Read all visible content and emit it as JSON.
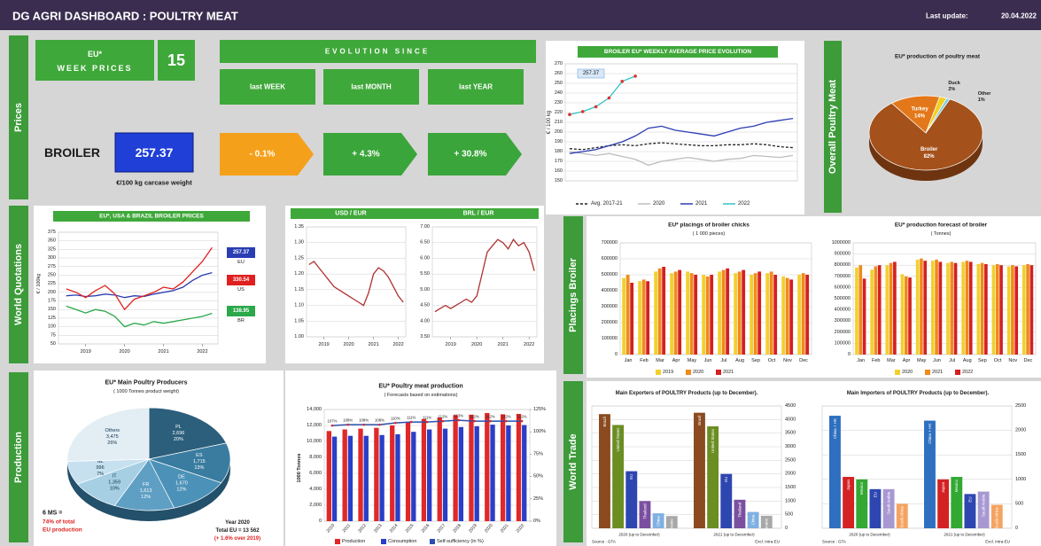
{
  "header": {
    "title": "DG AGRI DASHBOARD  :  POULTRY MEAT",
    "last_update_label": "Last update:",
    "last_update": "20.04.2022"
  },
  "tabs": {
    "prices": "Prices",
    "world_quotations": "World Quotations",
    "production": "Production",
    "overall": "Overall Poultry Meat",
    "placings": "Placings Broiler",
    "world_trade": "World Trade"
  },
  "prices": {
    "week_label_1": "EU*",
    "week_label_2": "WEEK  PRICES",
    "week": 15,
    "evolution_title": "EVOLUTION SINCE",
    "periods": [
      "last WEEK",
      "last MONTH",
      "last YEAR"
    ],
    "product": "BROILER",
    "price": 257.37,
    "unit": "€/100 kg carcase weight",
    "changes": [
      "- 0.1%",
      "+ 4.3%",
      "+ 30.8%"
    ]
  },
  "broiler_chart": {
    "type": "line",
    "title": "BROILER EU* WEEKLY AVERAGE PRICE EVOLUTION",
    "y_label": "€ / 100 kg",
    "x": [
      1,
      4,
      7,
      10,
      13,
      16,
      19,
      22,
      25,
      28,
      31,
      34,
      37,
      40,
      43,
      46,
      49,
      52
    ],
    "xlim": [
      0,
      53
    ],
    "ylim": [
      150,
      270
    ],
    "yticks": [
      150,
      160,
      170,
      180,
      190,
      200,
      210,
      220,
      230,
      240,
      250,
      260,
      270
    ],
    "grid": true,
    "series": [
      {
        "name": "Avg. 2017-21",
        "color": "#222222",
        "dash": true,
        "values": [
          183,
          182,
          184,
          186,
          187,
          186,
          188,
          189,
          188,
          187,
          186,
          186,
          187,
          187,
          188,
          187,
          185,
          184
        ]
      },
      {
        "name": "2020",
        "color": "#bdbdbd",
        "values": [
          180,
          178,
          176,
          178,
          175,
          172,
          166,
          170,
          172,
          174,
          172,
          170,
          172,
          173,
          176,
          175,
          174,
          176
        ]
      },
      {
        "name": "2021",
        "color": "#2a3db3",
        "values": [
          178,
          180,
          182,
          186,
          190,
          196,
          204,
          206,
          202,
          200,
          198,
          196,
          200,
          204,
          206,
          210,
          212,
          214
        ]
      },
      {
        "name": "2022",
        "color": "#35c3c3",
        "marker_color": "#e03030",
        "values": [
          218,
          221,
          226,
          235,
          252,
          257.37,
          null,
          null,
          null,
          null,
          null,
          null,
          null,
          null,
          null,
          null,
          null,
          null
        ]
      }
    ]
  },
  "overall_pie": {
    "type": "pie",
    "title": "EU* production of poultry meat",
    "labels": [
      "Broiler",
      "Turkey",
      "Duck",
      "Other"
    ],
    "values": [
      82,
      14,
      2,
      1
    ],
    "value_labels": [
      "82%",
      "14%",
      "2%",
      "1%"
    ],
    "colors": [
      "#a4511b",
      "#e3781a",
      "#f3cf22",
      "#7dcfe6"
    ]
  },
  "world_chart": {
    "type": "line",
    "title": "EU*, USA & BRAZIL BROILER PRICES",
    "y_label": "€ / 100kg",
    "x": [
      2018.5,
      2018.75,
      2019,
      2019.25,
      2019.5,
      2019.75,
      2020,
      2020.25,
      2020.5,
      2020.75,
      2021,
      2021.25,
      2021.5,
      2021.75,
      2022,
      2022.25
    ],
    "xlim": [
      2018.3,
      2022.4
    ],
    "xticks": [
      2019,
      2020,
      2021,
      2022
    ],
    "ylim": [
      50,
      375
    ],
    "yticks": [
      50,
      75,
      100,
      125,
      150,
      175,
      200,
      225,
      250,
      275,
      300,
      325,
      350,
      375
    ],
    "grid": true,
    "series": [
      {
        "name": "EU",
        "color": "#2a3db3",
        "values": [
          190,
          192,
          188,
          190,
          195,
          192,
          185,
          190,
          188,
          195,
          200,
          205,
          215,
          235,
          250,
          257.37
        ]
      },
      {
        "name": "US",
        "color": "#e02020",
        "values": [
          210,
          200,
          185,
          205,
          220,
          195,
          150,
          180,
          190,
          200,
          215,
          210,
          230,
          260,
          290,
          330.54
        ]
      },
      {
        "name": "BR",
        "color": "#2aa84a",
        "values": [
          160,
          150,
          140,
          150,
          145,
          130,
          100,
          110,
          105,
          115,
          110,
          115,
          120,
          125,
          130,
          138.95
        ]
      }
    ]
  },
  "usd_chart": {
    "type": "line",
    "title": "USD / EUR",
    "x": [
      2018.4,
      2018.6,
      2018.8,
      2019,
      2019.2,
      2019.4,
      2019.6,
      2019.8,
      2020,
      2020.2,
      2020.4,
      2020.6,
      2020.8,
      2021,
      2021.2,
      2021.4,
      2021.6,
      2021.8,
      2022,
      2022.2
    ],
    "xlim": [
      2018.3,
      2022.3
    ],
    "xticks": [
      2019,
      2020,
      2021,
      2022
    ],
    "ylim": [
      1,
      1.35
    ],
    "yticks": [
      {
        "value": 1,
        "label": "1.00"
      },
      1.05,
      {
        "value": 1.1,
        "label": "1.10"
      },
      1.15,
      {
        "value": 1.2,
        "label": "1.20"
      },
      1.25,
      {
        "value": 1.3,
        "label": "1.30"
      },
      1.35
    ],
    "grid": true,
    "series": [
      {
        "name": "USD / EUR",
        "color": "#b03030",
        "values": [
          1.23,
          1.24,
          1.22,
          1.2,
          1.18,
          1.16,
          1.15,
          1.14,
          1.13,
          1.12,
          1.11,
          1.1,
          1.14,
          1.2,
          1.22,
          1.21,
          1.19,
          1.16,
          1.13,
          1.11
        ]
      }
    ]
  },
  "brl_chart": {
    "type": "line",
    "title": "BRL / EUR",
    "x": [
      2018.4,
      2018.6,
      2018.8,
      2019,
      2019.2,
      2019.4,
      2019.6,
      2019.8,
      2020,
      2020.2,
      2020.4,
      2020.6,
      2020.8,
      2021,
      2021.2,
      2021.4,
      2021.6,
      2021.8,
      2022,
      2022.2
    ],
    "xlim": [
      2018.3,
      2022.3
    ],
    "xticks": [
      2019,
      2020,
      2021,
      2022
    ],
    "ylim": [
      3.5,
      7
    ],
    "yticks": [
      {
        "value": 3.5,
        "label": "3.50"
      },
      {
        "value": 4,
        "label": "4.00"
      },
      {
        "value": 4.5,
        "label": "4.50"
      },
      {
        "value": 5,
        "label": "5.00"
      },
      {
        "value": 5.5,
        "label": "5.50"
      },
      {
        "value": 6,
        "label": "6.00"
      },
      {
        "value": 6.5,
        "label": "6.50"
      },
      {
        "value": 7,
        "label": "7.00"
      }
    ],
    "grid": true,
    "series": [
      {
        "name": "BRL / EUR",
        "color": "#b03030",
        "values": [
          4.3,
          4.4,
          4.5,
          4.4,
          4.5,
          4.6,
          4.7,
          4.6,
          4.8,
          5.5,
          6.2,
          6.4,
          6.6,
          6.5,
          6.3,
          6.6,
          6.4,
          6.5,
          6.2,
          5.6
        ]
      }
    ]
  },
  "placings_chart": {
    "type": "bar",
    "title": "EU* placings of broiler chicks",
    "subtitle": "( 1 000 pieces)",
    "categories": [
      "Jan",
      "Feb",
      "Mar",
      "Apr",
      "May",
      "Jun",
      "Jul",
      "Aug",
      "Sep",
      "Oct",
      "Nov",
      "Dec"
    ],
    "ylim": [
      0,
      700000
    ],
    "yticks": [
      0,
      100000,
      200000,
      300000,
      400000,
      500000,
      600000,
      700000
    ],
    "grid": true,
    "series": [
      {
        "name": "2019",
        "color": "#f2d02c",
        "values": [
          480000,
          460000,
          520000,
          510000,
          520000,
          500000,
          520000,
          510000,
          500000,
          510000,
          490000,
          500000
        ]
      },
      {
        "name": "2020",
        "color": "#f08a1c",
        "values": [
          500000,
          470000,
          540000,
          520000,
          510000,
          490000,
          530000,
          520000,
          510000,
          520000,
          480000,
          510000
        ]
      },
      {
        "name": "2021",
        "color": "#d42020",
        "values": [
          450000,
          460000,
          550000,
          530000,
          500000,
          500000,
          540000,
          530000,
          520000,
          500000,
          470000,
          500000
        ]
      }
    ]
  },
  "forecast_chart": {
    "type": "bar",
    "title": "EU* production forecast of broiler",
    "subtitle": "( Tonnes)",
    "categories": [
      "Jan",
      "Feb",
      "Mar",
      "Apr",
      "May",
      "Jun",
      "Jul",
      "Aug",
      "Sep",
      "Oct",
      "Nov",
      "Dec"
    ],
    "ylim": [
      0,
      1000000
    ],
    "yticks": [
      0,
      100000,
      200000,
      300000,
      400000,
      500000,
      600000,
      700000,
      800000,
      900000,
      1000000
    ],
    "grid": true,
    "series": [
      {
        "name": "2020",
        "color": "#f2d02c",
        "values": [
          780000,
          760000,
          800000,
          720000,
          850000,
          840000,
          820000,
          830000,
          810000,
          800000,
          790000,
          800000
        ]
      },
      {
        "name": "2021",
        "color": "#f08a1c",
        "values": [
          800000,
          790000,
          820000,
          700000,
          860000,
          850000,
          830000,
          840000,
          820000,
          810000,
          800000,
          810000
        ]
      },
      {
        "name": "2022",
        "color": "#d42020",
        "values": [
          680000,
          800000,
          830000,
          690000,
          840000,
          830000,
          820000,
          830000,
          810000,
          800000,
          790000,
          800000
        ]
      }
    ]
  },
  "producers_pie": {
    "type": "pie",
    "title": "EU*  Main Poultry Producers",
    "subtitle": "( 1000 Tonnes product weight)",
    "labels": [
      "PL",
      "ES",
      "DE",
      "FR",
      "IT",
      "NL",
      "Others"
    ],
    "values": [
      2696,
      1715,
      1670,
      1613,
      1359,
      996,
      3475
    ],
    "value_labels": [
      "2,696",
      "1,715",
      "1,670",
      "1,613",
      "1,359",
      "996",
      "3,475"
    ],
    "percents": [
      20,
      13,
      12,
      12,
      10,
      7,
      26
    ],
    "percent_labels": [
      "20%",
      "13%",
      "12%",
      "12%",
      "10%",
      "7%",
      "26%"
    ],
    "colors": [
      "#2c5f7c",
      "#3a7ca0",
      "#4c92b8",
      "#5f9fc4",
      "#a6cfe3",
      "#c6e0ef",
      "#e2edf4"
    ],
    "notes": {
      "ms": "6 MS  =",
      "share_1": "74% of total",
      "share_2": "EU production",
      "year": "Year 2020",
      "total": "Total EU = 13 562",
      "growth": "(+ 1.6% over 2019)"
    }
  },
  "production_chart": {
    "type": "bar",
    "title": "EU* Poultry meat production",
    "subtitle": "( Forecasts based on estimations)",
    "y_label": "1000 Tonnes",
    "categories": [
      "2010",
      "2011",
      "2012",
      "2013",
      "2014",
      "2015",
      "2016",
      "2017",
      "2018",
      "2019",
      "2020",
      "2021",
      "2022"
    ],
    "ylim": [
      0,
      14000
    ],
    "yticks": [
      0,
      {
        "value": 2000,
        "label": "2,000"
      },
      {
        "value": 4000,
        "label": "4,000"
      },
      {
        "value": 6000,
        "label": "6,000"
      },
      {
        "value": 8000,
        "label": "8,000"
      },
      {
        "value": 10000,
        "label": "10,000"
      },
      {
        "value": 12000,
        "label": "12,000"
      },
      {
        "value": 14000,
        "label": "14,000"
      }
    ],
    "grid": true,
    "y2lim": [
      0,
      125
    ],
    "y2ticks": [
      {
        "value": 0,
        "label": "0%"
      },
      {
        "value": 25,
        "label": "25%"
      },
      {
        "value": 50,
        "label": "50%"
      },
      {
        "value": 75,
        "label": "75%"
      },
      {
        "value": 100,
        "label": "100%"
      },
      {
        "value": 125,
        "label": "125%"
      }
    ],
    "series": [
      {
        "name": "Production",
        "color": "#e02828",
        "values": [
          11300,
          11500,
          11600,
          11700,
          12000,
          12400,
          12800,
          13000,
          13300,
          13350,
          13562,
          13400,
          13450
        ]
      },
      {
        "name": "Consumption",
        "color": "#2a3ec8",
        "values": [
          10600,
          10700,
          10700,
          10800,
          10900,
          11200,
          11500,
          11600,
          11800,
          11900,
          12100,
          12000,
          12050
        ]
      },
      {
        "name": "Self-sufficiency (in %)",
        "color": "#2a4fb0",
        "axis": "y2",
        "values": [
          107,
          108,
          108,
          108,
          110,
          111,
          111,
          112,
          113,
          112,
          112,
          112,
          112
        ],
        "value_labels": [
          "107%",
          "108%",
          "108%",
          "108%",
          "110%",
          "111%",
          "111%",
          "112%",
          "113%",
          "112%",
          "112%",
          "112%",
          "112%"
        ]
      }
    ]
  },
  "exporters_chart": {
    "type": "bar",
    "title": "Main Exporters of POULTRY Products (up to December).",
    "categories": [
      "2020 (up to December)",
      "2021 (up to December)"
    ],
    "ylim": [
      0,
      4500
    ],
    "yticks": [
      0,
      500,
      1000,
      1500,
      2000,
      2500,
      3000,
      3500,
      4000,
      4500
    ],
    "grid": true,
    "series": [
      {
        "name": "Brazil",
        "color": "#8b4a1f",
        "values": [
          4200,
          4250
        ]
      },
      {
        "name": "United States",
        "color": "#6b8e23",
        "values": [
          3800,
          3750
        ]
      },
      {
        "name": "EU",
        "color": "#2e46b0",
        "values": [
          2100,
          2000
        ]
      },
      {
        "name": "Thailand",
        "color": "#7a4fa0",
        "values": [
          1000,
          1050
        ]
      },
      {
        "name": "China",
        "color": "#7fb0e0",
        "values": [
          550,
          600
        ]
      },
      {
        "name": "Ukraine",
        "color": "#a8a8a8",
        "values": [
          450,
          460
        ]
      }
    ],
    "source": "Source : GTA",
    "note": "Excl. Intra-EU"
  },
  "importers_chart": {
    "type": "bar",
    "title": "Main Importers of POULTRY Products (up to December).",
    "categories": [
      "2020 (up to December)",
      "2021 (up to December)"
    ],
    "ylim": [
      0,
      2500
    ],
    "yticks": [
      0,
      500,
      1000,
      1500,
      2000,
      2500
    ],
    "grid": true,
    "series": [
      {
        "name": "China + HK",
        "color": "#2e6fc0",
        "values": [
          2300,
          2200
        ]
      },
      {
        "name": "Japan",
        "color": "#d42222",
        "values": [
          1050,
          1000
        ]
      },
      {
        "name": "Mexico",
        "color": "#33a833",
        "values": [
          1000,
          1050
        ]
      },
      {
        "name": "EU",
        "color": "#2e46b0",
        "values": [
          800,
          700
        ]
      },
      {
        "name": "Saudi Arabia",
        "color": "#a898d2",
        "values": [
          800,
          750
        ]
      },
      {
        "name": "South Africa",
        "color": "#f4a460",
        "values": [
          500,
          480
        ]
      }
    ],
    "source": "Source : GTA",
    "note": "Excl. Intra-EU"
  }
}
